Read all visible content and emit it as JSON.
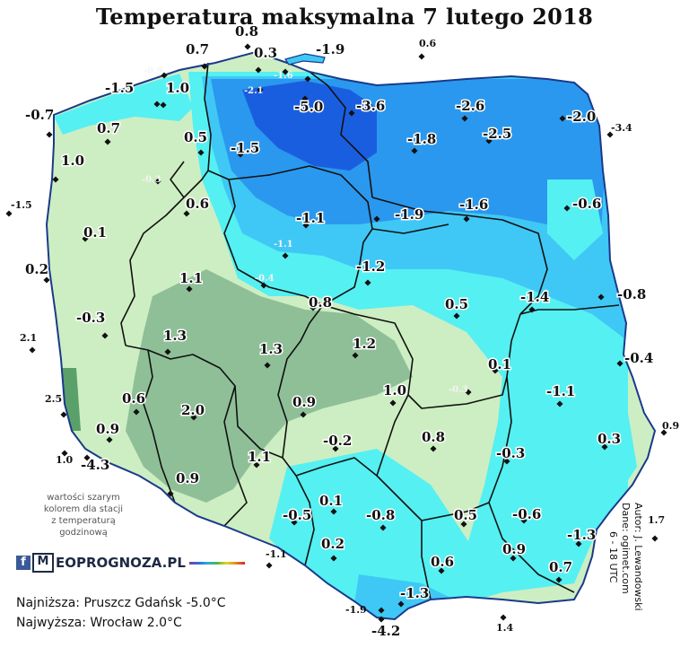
{
  "title": "Temperatura maksymalna 7 lutego 2018",
  "map_legend_note": [
    "wartości szarym",
    "kolorem dla stacji",
    "z temperaturą",
    "godzinową"
  ],
  "brand": {
    "fb": "f",
    "m": "M",
    "text": "EOPROGNOZA.PL"
  },
  "summary": {
    "lowest": "Najniższa: Pruszcz Gdańsk -5.0°C",
    "highest": "Najwyższa: Wrocław 2.0°C"
  },
  "credits": {
    "author": "Autor: J. Lewandowski",
    "data": "Dane: ogimet.com",
    "hours": "6 - 18 UTC"
  },
  "colors": {
    "land_outside": "#ffffff",
    "warm_green": "#cdeec2",
    "warmest_green": "#8fbf97",
    "cyan": "#55f0f2",
    "light_blue": "#3fc8f5",
    "blue": "#2a98ee",
    "deep_blue": "#1a5ee0",
    "sea": "#ffffff"
  },
  "stations": [
    {
      "label": "0.8",
      "kind": "big"
    },
    {
      "label": "0.7",
      "kind": "big"
    },
    {
      "label": "0.3",
      "kind": "big"
    },
    {
      "label": "-1.9",
      "kind": "big"
    },
    {
      "label": "0.6",
      "kind": "small"
    },
    {
      "label": "-0.9",
      "kind": "grey"
    },
    {
      "label": "-1.6",
      "kind": "grey"
    },
    {
      "label": "-1.5",
      "kind": "big"
    },
    {
      "label": "1.0",
      "kind": "big"
    },
    {
      "label": "-2.1",
      "kind": "grey"
    },
    {
      "label": "-5.0",
      "kind": "big"
    },
    {
      "label": "-3.6",
      "kind": "big"
    },
    {
      "label": "-2.6",
      "kind": "big"
    },
    {
      "label": "-2.0",
      "kind": "big"
    },
    {
      "label": "-0.7",
      "kind": "big"
    },
    {
      "label": "-3.4",
      "kind": "small"
    },
    {
      "label": "0.7",
      "kind": "big"
    },
    {
      "label": "0.5",
      "kind": "big"
    },
    {
      "label": "-1.8",
      "kind": "big"
    },
    {
      "label": "-2.5",
      "kind": "big"
    },
    {
      "label": "1.0",
      "kind": "big"
    },
    {
      "label": "-1.5",
      "kind": "big"
    },
    {
      "label": "-0.3",
      "kind": "grey"
    },
    {
      "label": "-1.5",
      "kind": "small"
    },
    {
      "label": "0.6",
      "kind": "big"
    },
    {
      "label": "-1.1",
      "kind": "big"
    },
    {
      "label": "-1.9",
      "kind": "big"
    },
    {
      "label": "-1.6",
      "kind": "big"
    },
    {
      "label": "-0.6",
      "kind": "big"
    },
    {
      "label": "0.1",
      "kind": "big"
    },
    {
      "label": "-1.1",
      "kind": "grey"
    },
    {
      "label": "0.2",
      "kind": "big"
    },
    {
      "label": "-1.2",
      "kind": "big"
    },
    {
      "label": "1.1",
      "kind": "big"
    },
    {
      "label": "-0.4",
      "kind": "grey"
    },
    {
      "label": "-0.8",
      "kind": "big"
    },
    {
      "label": "0.8",
      "kind": "big"
    },
    {
      "label": "0.5",
      "kind": "big"
    },
    {
      "label": "-1.4",
      "kind": "big"
    },
    {
      "label": "-0.3",
      "kind": "big"
    },
    {
      "label": "2.1",
      "kind": "small"
    },
    {
      "label": "1.3",
      "kind": "big"
    },
    {
      "label": "1.3",
      "kind": "big"
    },
    {
      "label": "1.2",
      "kind": "big"
    },
    {
      "label": "-0.4",
      "kind": "big"
    },
    {
      "label": "0.1",
      "kind": "big"
    },
    {
      "label": "-0.3",
      "kind": "grey"
    },
    {
      "label": "-1.1",
      "kind": "big"
    },
    {
      "label": "2.5",
      "kind": "small"
    },
    {
      "label": "0.6",
      "kind": "big"
    },
    {
      "label": "2.0",
      "kind": "big"
    },
    {
      "label": "0.9",
      "kind": "big"
    },
    {
      "label": "1.0",
      "kind": "big"
    },
    {
      "label": "0.9",
      "kind": "small"
    },
    {
      "label": "0.9",
      "kind": "big"
    },
    {
      "label": "-0.2",
      "kind": "big"
    },
    {
      "label": "0.8",
      "kind": "big"
    },
    {
      "label": "0.3",
      "kind": "big"
    },
    {
      "label": "1.0",
      "kind": "small"
    },
    {
      "label": "-4.3",
      "kind": "big"
    },
    {
      "label": "1.1",
      "kind": "big"
    },
    {
      "label": "-0.3",
      "kind": "big"
    },
    {
      "label": "0.9",
      "kind": "big"
    },
    {
      "label": "0.1",
      "kind": "big"
    },
    {
      "label": "-0.5",
      "kind": "big"
    },
    {
      "label": "-0.8",
      "kind": "big"
    },
    {
      "label": "0.5",
      "kind": "big"
    },
    {
      "label": "-0.6",
      "kind": "big"
    },
    {
      "label": "1.7",
      "kind": "small"
    },
    {
      "label": "-1.3",
      "kind": "big"
    },
    {
      "label": "0.9",
      "kind": "big"
    },
    {
      "label": "0.2",
      "kind": "big"
    },
    {
      "label": "-1.1",
      "kind": "small"
    },
    {
      "label": "0.6",
      "kind": "big"
    },
    {
      "label": "0.7",
      "kind": "big"
    },
    {
      "label": "-1.3",
      "kind": "big"
    },
    {
      "label": "-1.9",
      "kind": "small"
    },
    {
      "label": "-4.2",
      "kind": "big"
    },
    {
      "label": "1.4",
      "kind": "small"
    }
  ]
}
